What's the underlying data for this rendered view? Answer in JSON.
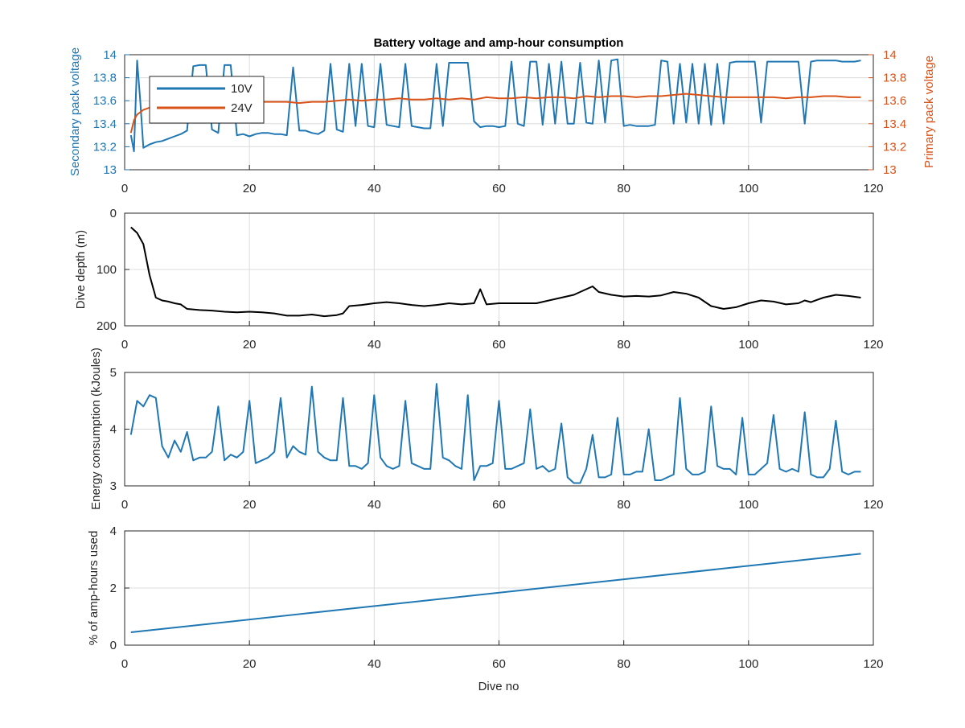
{
  "colors": {
    "blue": "#1f77b4",
    "orange": "#d95319",
    "black": "#000000",
    "axis": "#262626",
    "grid": "#dcdcdc"
  },
  "chart_data": [
    {
      "type": "line",
      "title": "Battery voltage and amp-hour consumption",
      "xlabel": "",
      "ylabel": "Secondary pack voltage",
      "ylabel_right": "Primary pack voltage",
      "xlim": [
        0,
        120
      ],
      "ylim": [
        13,
        14
      ],
      "ylim_right": [
        13,
        14
      ],
      "x_ticks": [
        "0",
        "20",
        "40",
        "60",
        "80",
        "100",
        "120"
      ],
      "y_ticks": [
        "13",
        "13.2",
        "13.4",
        "13.6",
        "13.8",
        "14"
      ],
      "y_ticks_right": [
        "13",
        "13.2",
        "13.4",
        "13.6",
        "13.8",
        "14"
      ],
      "grid": true,
      "legend_position": "top-left",
      "series": [
        {
          "name": "10V",
          "axis": "left",
          "x": [
            1,
            1.5,
            2,
            2.5,
            3,
            4,
            5,
            6,
            7,
            8,
            9,
            10,
            11,
            12,
            13,
            14,
            15,
            16,
            17,
            18,
            19,
            20,
            21,
            22,
            23,
            24,
            25,
            26,
            27,
            28,
            29,
            30,
            31,
            32,
            33,
            34,
            35,
            36,
            37,
            38,
            39,
            40,
            41,
            42,
            43,
            44,
            45,
            46,
            47,
            48,
            49,
            50,
            51,
            52,
            53,
            54,
            55,
            56,
            57,
            58,
            59,
            60,
            61,
            62,
            63,
            64,
            65,
            66,
            67,
            68,
            69,
            70,
            71,
            72,
            73,
            74,
            75,
            76,
            77,
            78,
            79,
            80,
            81,
            82,
            83,
            84,
            85,
            86,
            87,
            88,
            89,
            90,
            91,
            92,
            93,
            94,
            95,
            96,
            97,
            98,
            99,
            100,
            101,
            102,
            103,
            104,
            105,
            106,
            107,
            108,
            109,
            110,
            111,
            112,
            113,
            114,
            115,
            116,
            117,
            118
          ],
          "values": [
            13.3,
            13.16,
            13.95,
            13.6,
            13.19,
            13.22,
            13.24,
            13.25,
            13.27,
            13.29,
            13.31,
            13.34,
            13.9,
            13.91,
            13.91,
            13.35,
            13.32,
            13.91,
            13.91,
            13.3,
            13.31,
            13.29,
            13.31,
            13.32,
            13.32,
            13.31,
            13.31,
            13.3,
            13.89,
            13.34,
            13.34,
            13.32,
            13.31,
            13.34,
            13.92,
            13.35,
            13.33,
            13.92,
            13.38,
            13.92,
            13.38,
            13.37,
            13.92,
            13.39,
            13.38,
            13.37,
            13.92,
            13.38,
            13.37,
            13.36,
            13.36,
            13.92,
            13.38,
            13.93,
            13.93,
            13.93,
            13.93,
            13.42,
            13.37,
            13.38,
            13.38,
            13.37,
            13.38,
            13.94,
            13.4,
            13.38,
            13.94,
            13.94,
            13.39,
            13.92,
            13.4,
            13.94,
            13.4,
            13.4,
            13.93,
            13.41,
            13.4,
            13.95,
            13.41,
            13.95,
            13.96,
            13.38,
            13.39,
            13.38,
            13.38,
            13.38,
            13.39,
            13.95,
            13.94,
            13.4,
            13.92,
            13.41,
            13.92,
            13.4,
            13.92,
            13.39,
            13.92,
            13.4,
            13.93,
            13.94,
            13.94,
            13.94,
            13.94,
            13.41,
            13.94,
            13.94,
            13.94,
            13.94,
            13.94,
            13.94,
            13.4,
            13.94,
            13.95,
            13.95,
            13.95,
            13.95,
            13.94,
            13.94,
            13.94,
            13.95
          ]
        },
        {
          "name": "24V",
          "axis": "right",
          "x": [
            1,
            1.5,
            2,
            2.5,
            3,
            4,
            5,
            6,
            8,
            10,
            12,
            14,
            16,
            18,
            20,
            22,
            24,
            26,
            28,
            30,
            32,
            34,
            36,
            38,
            40,
            42,
            44,
            46,
            48,
            50,
            52,
            54,
            56,
            58,
            60,
            62,
            64,
            66,
            68,
            70,
            72,
            74,
            76,
            78,
            80,
            82,
            84,
            86,
            88,
            90,
            92,
            94,
            96,
            98,
            100,
            102,
            104,
            106,
            108,
            110,
            112,
            114,
            116,
            118
          ],
          "values": [
            13.32,
            13.43,
            13.48,
            13.5,
            13.52,
            13.54,
            13.55,
            13.56,
            13.57,
            13.575,
            13.58,
            13.58,
            13.58,
            13.58,
            13.585,
            13.59,
            13.59,
            13.59,
            13.58,
            13.59,
            13.59,
            13.6,
            13.61,
            13.6,
            13.61,
            13.61,
            13.62,
            13.61,
            13.61,
            13.62,
            13.61,
            13.62,
            13.61,
            13.63,
            13.62,
            13.62,
            13.63,
            13.62,
            13.63,
            13.63,
            13.62,
            13.64,
            13.63,
            13.64,
            13.64,
            13.63,
            13.64,
            13.64,
            13.65,
            13.66,
            13.65,
            13.64,
            13.63,
            13.63,
            13.63,
            13.63,
            13.63,
            13.62,
            13.63,
            13.63,
            13.64,
            13.64,
            13.63,
            13.63
          ]
        }
      ]
    },
    {
      "type": "line",
      "title": "",
      "xlabel": "",
      "ylabel": "Dive depth (m)",
      "xlim": [
        0,
        120
      ],
      "ylim": [
        0,
        200
      ],
      "y_reversed": true,
      "x_ticks": [
        "0",
        "20",
        "40",
        "60",
        "80",
        "100",
        "120"
      ],
      "y_ticks": [
        "0",
        "100",
        "200"
      ],
      "grid": true,
      "series": [
        {
          "x": [
            1,
            2,
            3,
            4,
            5,
            6,
            7,
            8,
            9,
            10,
            12,
            14,
            16,
            18,
            20,
            22,
            24,
            26,
            28,
            30,
            32,
            34,
            35,
            36,
            38,
            40,
            42,
            44,
            46,
            48,
            50,
            52,
            54,
            56,
            57,
            58,
            60,
            62,
            64,
            66,
            68,
            70,
            72,
            74,
            75,
            76,
            78,
            80,
            82,
            84,
            86,
            88,
            90,
            92,
            94,
            96,
            98,
            100,
            102,
            104,
            106,
            108,
            109,
            110,
            112,
            114,
            116,
            118
          ],
          "values": [
            25,
            35,
            55,
            110,
            150,
            155,
            157,
            160,
            162,
            170,
            172,
            173,
            175,
            176,
            175,
            176,
            178,
            182,
            182,
            180,
            183,
            181,
            178,
            165,
            163,
            160,
            158,
            160,
            163,
            165,
            163,
            160,
            162,
            160,
            135,
            162,
            160,
            160,
            160,
            160,
            155,
            150,
            145,
            135,
            130,
            140,
            145,
            148,
            147,
            148,
            146,
            140,
            143,
            150,
            165,
            170,
            167,
            160,
            155,
            157,
            162,
            160,
            155,
            158,
            150,
            145,
            147,
            150
          ]
        }
      ]
    },
    {
      "type": "line",
      "title": "",
      "xlabel": "",
      "ylabel": "Energy consumption (kJoules)",
      "xlim": [
        0,
        120
      ],
      "ylim": [
        3,
        5
      ],
      "x_ticks": [
        "0",
        "20",
        "40",
        "60",
        "80",
        "100",
        "120"
      ],
      "y_ticks": [
        "3",
        "4",
        "5"
      ],
      "grid": true,
      "series": [
        {
          "x": [
            1,
            2,
            3,
            4,
            5,
            6,
            7,
            8,
            9,
            10,
            11,
            12,
            13,
            14,
            15,
            16,
            17,
            18,
            19,
            20,
            21,
            22,
            23,
            24,
            25,
            26,
            27,
            28,
            29,
            30,
            31,
            32,
            33,
            34,
            35,
            36,
            37,
            38,
            39,
            40,
            41,
            42,
            43,
            44,
            45,
            46,
            47,
            48,
            49,
            50,
            51,
            52,
            53,
            54,
            55,
            56,
            57,
            58,
            59,
            60,
            61,
            62,
            63,
            64,
            65,
            66,
            67,
            68,
            69,
            70,
            71,
            72,
            73,
            74,
            75,
            76,
            77,
            78,
            79,
            80,
            81,
            82,
            83,
            84,
            85,
            86,
            87,
            88,
            89,
            90,
            91,
            92,
            93,
            94,
            95,
            96,
            97,
            98,
            99,
            100,
            101,
            102,
            103,
            104,
            105,
            106,
            107,
            108,
            109,
            110,
            111,
            112,
            113,
            114,
            115,
            116,
            117,
            118
          ],
          "values": [
            3.9,
            4.5,
            4.4,
            4.6,
            4.55,
            3.7,
            3.5,
            3.8,
            3.6,
            3.95,
            3.45,
            3.5,
            3.5,
            3.6,
            4.4,
            3.45,
            3.55,
            3.5,
            3.6,
            4.5,
            3.4,
            3.45,
            3.5,
            3.6,
            4.55,
            3.5,
            3.7,
            3.6,
            3.55,
            4.75,
            3.6,
            3.5,
            3.45,
            3.45,
            4.55,
            3.35,
            3.35,
            3.3,
            3.4,
            4.6,
            3.5,
            3.35,
            3.3,
            3.35,
            4.5,
            3.4,
            3.35,
            3.3,
            3.3,
            4.8,
            3.5,
            3.45,
            3.35,
            3.3,
            4.6,
            3.1,
            3.35,
            3.35,
            3.4,
            4.5,
            3.3,
            3.3,
            3.35,
            3.4,
            4.35,
            3.3,
            3.35,
            3.25,
            3.3,
            4.1,
            3.15,
            3.05,
            3.05,
            3.3,
            3.9,
            3.15,
            3.15,
            3.2,
            4.2,
            3.2,
            3.2,
            3.25,
            3.25,
            4.0,
            3.1,
            3.1,
            3.15,
            3.2,
            4.55,
            3.3,
            3.2,
            3.2,
            3.25,
            4.4,
            3.35,
            3.3,
            3.3,
            3.2,
            4.2,
            3.2,
            3.2,
            3.3,
            3.4,
            4.25,
            3.3,
            3.25,
            3.3,
            3.25,
            4.3,
            3.2,
            3.15,
            3.15,
            3.3,
            4.15,
            3.25,
            3.2,
            3.25,
            3.25
          ]
        }
      ]
    },
    {
      "type": "line",
      "title": "",
      "xlabel": "Dive no",
      "ylabel": "% of amp-hours used",
      "xlim": [
        0,
        120
      ],
      "ylim": [
        0,
        4
      ],
      "x_ticks": [
        "0",
        "20",
        "40",
        "60",
        "80",
        "100",
        "120"
      ],
      "y_ticks": [
        "0",
        "2",
        "4"
      ],
      "grid": true,
      "series": [
        {
          "x": [
            1,
            118
          ],
          "values": [
            0.45,
            3.2
          ]
        }
      ]
    }
  ]
}
